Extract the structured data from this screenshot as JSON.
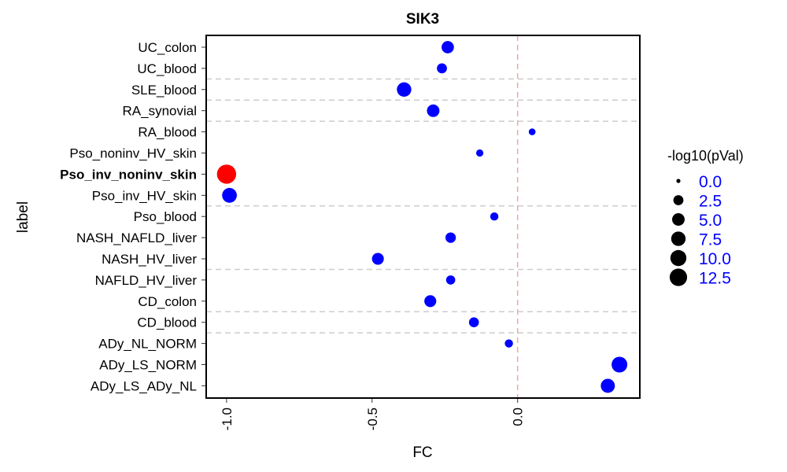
{
  "chart_data": {
    "type": "scatter",
    "title": "SIK3",
    "xlabel": "FC",
    "ylabel": "label",
    "xlim": [
      -1.07,
      0.42
    ],
    "x_ticks": [
      -1.0,
      -0.5,
      0.0
    ],
    "x_tick_labels": [
      "-1.0",
      "-0.5",
      "0.0"
    ],
    "reference_line_x": 0.0,
    "group_separators_after": [
      "ADy_NL_NORM",
      "CD_blood",
      "NAFLD_HV_liver",
      "Pso_blood",
      "RA_blood",
      "RA_synovial",
      "SLE_blood"
    ],
    "highlight_color": "#ff0000",
    "default_color": "#0000ff",
    "points": [
      {
        "label": "UC_colon",
        "fc": -0.24,
        "neglog10p": 4.8,
        "highlight": false
      },
      {
        "label": "UC_blood",
        "fc": -0.26,
        "neglog10p": 2.5,
        "highlight": false
      },
      {
        "label": "SLE_blood",
        "fc": -0.39,
        "neglog10p": 7.5,
        "highlight": false
      },
      {
        "label": "RA_synovial",
        "fc": -0.29,
        "neglog10p": 5.0,
        "highlight": false
      },
      {
        "label": "RA_blood",
        "fc": 0.05,
        "neglog10p": 0.5,
        "highlight": false
      },
      {
        "label": "Pso_noninv_HV_skin",
        "fc": -0.13,
        "neglog10p": 0.7,
        "highlight": false
      },
      {
        "label": "Pso_inv_noninv_skin",
        "fc": -1.0,
        "neglog10p": 16.0,
        "highlight": true
      },
      {
        "label": "Pso_inv_HV_skin",
        "fc": -0.99,
        "neglog10p": 8.0,
        "highlight": false
      },
      {
        "label": "Pso_blood",
        "fc": -0.08,
        "neglog10p": 1.2,
        "highlight": false
      },
      {
        "label": "NASH_NAFLD_liver",
        "fc": -0.23,
        "neglog10p": 2.8,
        "highlight": false
      },
      {
        "label": "NASH_HV_liver",
        "fc": -0.48,
        "neglog10p": 4.2,
        "highlight": false
      },
      {
        "label": "NAFLD_HV_liver",
        "fc": -0.23,
        "neglog10p": 1.8,
        "highlight": false
      },
      {
        "label": "CD_colon",
        "fc": -0.3,
        "neglog10p": 4.3,
        "highlight": false
      },
      {
        "label": "CD_blood",
        "fc": -0.15,
        "neglog10p": 2.4,
        "highlight": false
      },
      {
        "label": "ADy_NL_NORM",
        "fc": -0.03,
        "neglog10p": 1.2,
        "highlight": false
      },
      {
        "label": "ADy_LS_NORM",
        "fc": 0.35,
        "neglog10p": 9.5,
        "highlight": false
      },
      {
        "label": "ADy_LS_ADy_NL",
        "fc": 0.31,
        "neglog10p": 7.0,
        "highlight": false
      }
    ],
    "legend": {
      "title": "-log10(pVal)",
      "placement": "right",
      "entries": [
        {
          "label": "0.0",
          "value": 0.0
        },
        {
          "label": "2.5",
          "value": 2.5
        },
        {
          "label": "5.0",
          "value": 5.0
        },
        {
          "label": "7.5",
          "value": 7.5
        },
        {
          "label": "10.0",
          "value": 10.0
        },
        {
          "label": "12.5",
          "value": 12.5
        }
      ]
    }
  }
}
